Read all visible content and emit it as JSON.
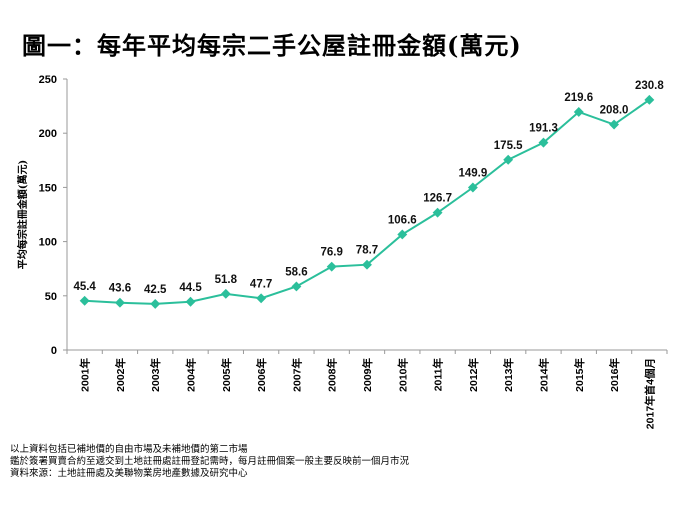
{
  "chart_data": {
    "type": "line",
    "title": "圖一：每年平均每宗二手公屋註冊金額(萬元)",
    "xlabel": "",
    "ylabel": "平均每宗註冊金額(萬元)",
    "ylim": [
      0,
      250
    ],
    "yticks": [
      "0",
      "50",
      "100",
      "150",
      "200",
      "250"
    ],
    "categories": [
      "2001年",
      "2002年",
      "2003年",
      "2004年",
      "2005年",
      "2006年",
      "2007年",
      "2008年",
      "2009年",
      "2010年",
      "2011年",
      "2012年",
      "2013年",
      "2014年",
      "2015年",
      "2016年",
      "2017年首4個月"
    ],
    "values": [
      45.4,
      43.6,
      42.5,
      44.5,
      51.8,
      47.7,
      58.6,
      76.9,
      78.7,
      106.6,
      126.7,
      149.9,
      175.5,
      191.3,
      219.6,
      208.0,
      230.8
    ],
    "value_labels": [
      "45.4",
      "43.6",
      "42.5",
      "44.5",
      "51.8",
      "47.7",
      "58.6",
      "76.9",
      "78.7",
      "106.6",
      "126.7",
      "149.9",
      "175.5",
      "191.3",
      "219.6",
      "208.0",
      "230.8"
    ],
    "line_color": "#2bbf9b",
    "grid": false,
    "legend": "none"
  },
  "notes": [
    "以上資料包括已補地價的自由市場及未補地價的第二市場",
    "鑑於簽署買賣合約至遞交到土地註冊處註冊登記需時，每月註冊個案一般主要反映前一個月市況",
    "資料來源：土地註冊處及美聯物業房地產數據及研究中心"
  ]
}
